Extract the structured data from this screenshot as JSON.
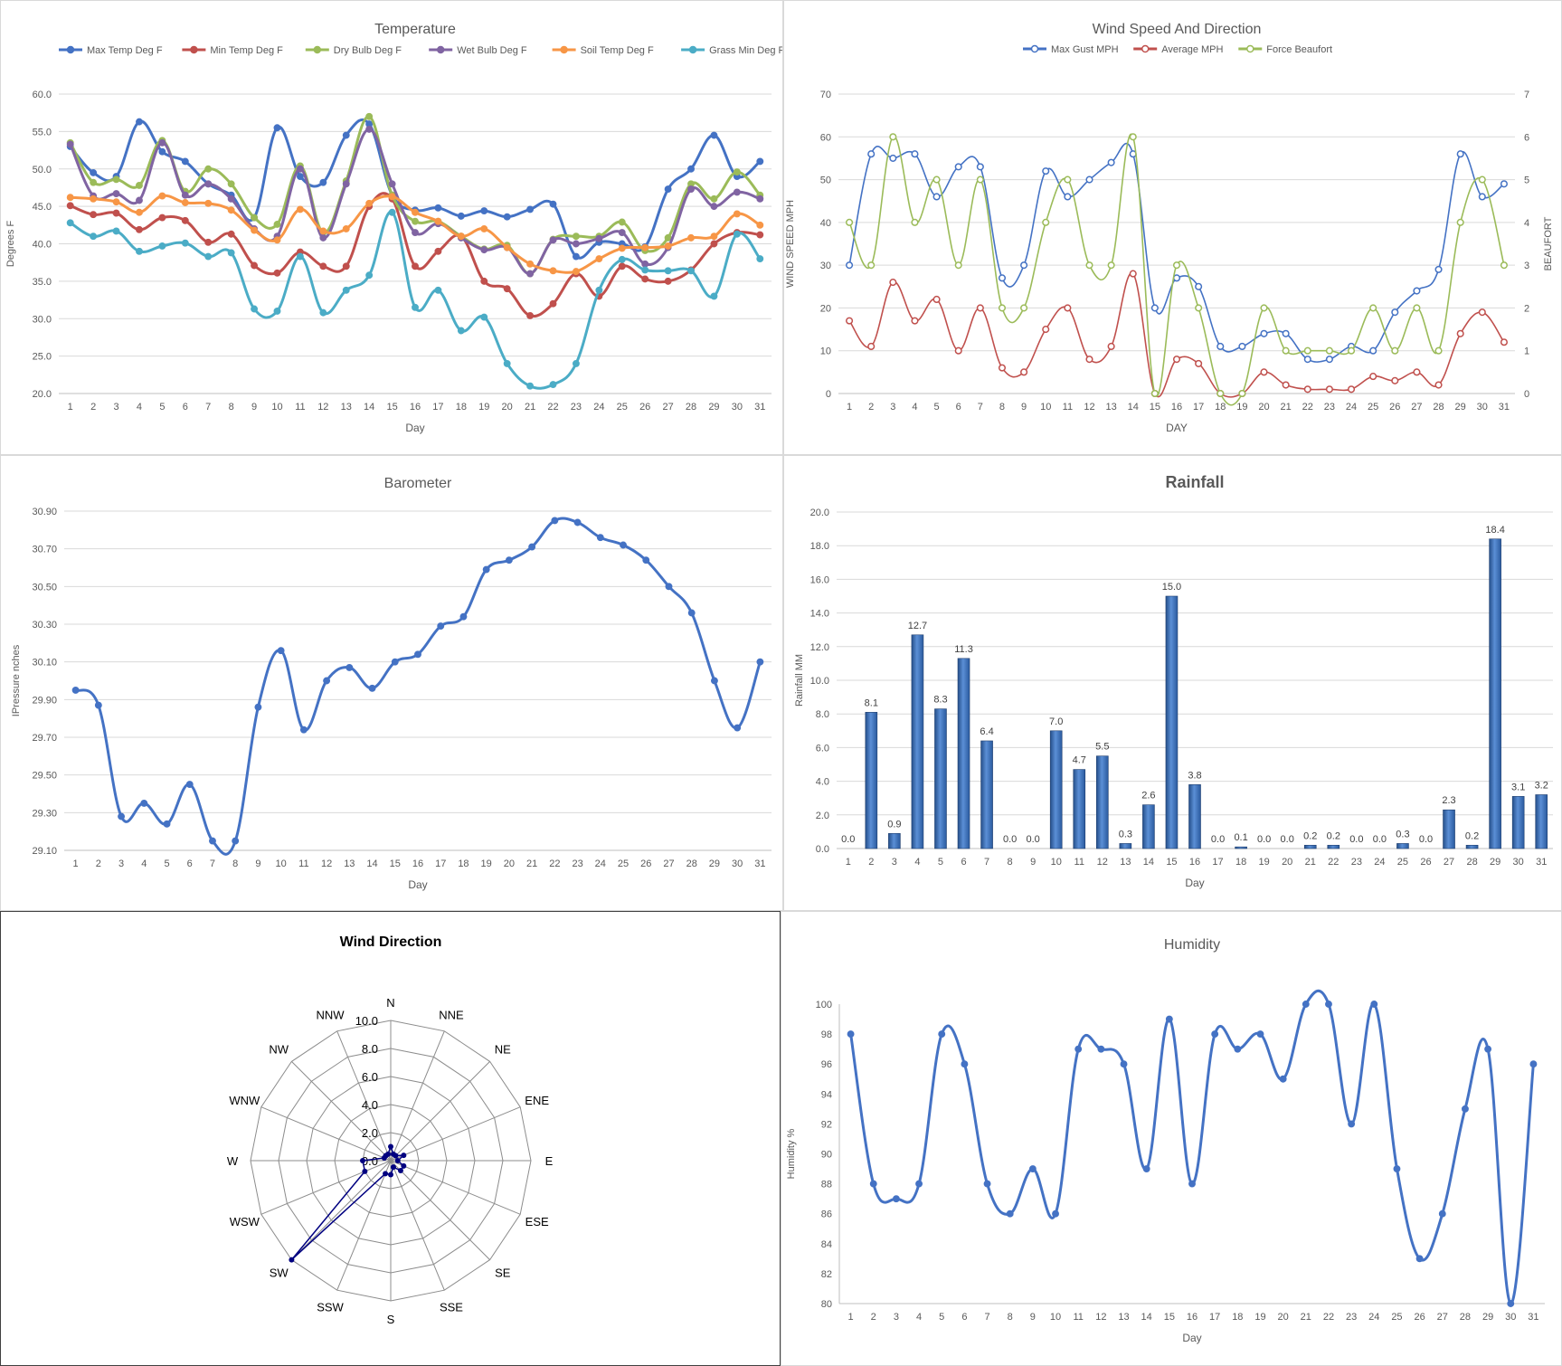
{
  "chart_data": [
    {
      "id": "temperature",
      "type": "line",
      "title": "Temperature",
      "xlabel": "Day",
      "ylabel": "Degrees F",
      "ylim": [
        20,
        60
      ],
      "yticks": [
        "20.0",
        "25.0",
        "30.0",
        "35.0",
        "40.0",
        "45.0",
        "50.0",
        "55.0",
        "60.0"
      ],
      "grid": true,
      "legend_position": "top",
      "categories": [
        "1",
        "2",
        "3",
        "4",
        "5",
        "6",
        "7",
        "8",
        "9",
        "10",
        "11",
        "12",
        "13",
        "14",
        "15",
        "16",
        "17",
        "18",
        "19",
        "20",
        "21",
        "22",
        "23",
        "24",
        "25",
        "26",
        "27",
        "28",
        "29",
        "30",
        "31"
      ],
      "series": [
        {
          "name": "Max Temp Deg F",
          "color": "#4472C4",
          "values": [
            53.0,
            49.5,
            49.0,
            56.3,
            52.3,
            51.0,
            48.0,
            46.5,
            43.5,
            55.5,
            49.0,
            48.2,
            54.5,
            56.0,
            46.5,
            44.5,
            44.8,
            43.7,
            44.4,
            43.6,
            44.6,
            45.3,
            38.3,
            40.2,
            40.0,
            39.6,
            47.3,
            50.0,
            54.5,
            49.0,
            51.0
          ]
        },
        {
          "name": "Min Temp Deg F",
          "color": "#C0504D",
          "values": [
            45.1,
            43.9,
            44.1,
            41.9,
            43.5,
            43.1,
            40.2,
            41.3,
            37.1,
            36.1,
            38.9,
            37.0,
            37.0,
            45.0,
            46.0,
            37.0,
            39.0,
            41.0,
            35.0,
            34.0,
            30.4,
            32.0,
            36.0,
            33.0,
            37.0,
            35.3,
            35.0,
            36.5,
            40.0,
            41.5,
            41.2
          ]
        },
        {
          "name": "Dry Bulb Deg F",
          "color": "#9BBB59",
          "values": [
            53.5,
            48.2,
            48.6,
            47.8,
            53.8,
            47.0,
            50.0,
            48.0,
            43.5,
            42.6,
            50.4,
            41.5,
            48.4,
            57.0,
            46.5,
            43.0,
            43.0,
            41.0,
            39.3,
            39.8,
            36.0,
            40.6,
            41.0,
            41.0,
            42.9,
            39.1,
            40.8,
            48.0,
            46.0,
            49.6,
            46.5
          ]
        },
        {
          "name": "Wet Bulb Deg F",
          "color": "#8064A2",
          "values": [
            53.3,
            46.4,
            46.7,
            45.8,
            53.5,
            46.5,
            48.0,
            46.0,
            42.0,
            41.0,
            50.0,
            40.8,
            48.0,
            55.3,
            48.0,
            41.5,
            42.7,
            40.8,
            39.2,
            39.5,
            36.0,
            40.5,
            40.0,
            40.7,
            41.5,
            37.3,
            39.5,
            47.3,
            45.0,
            46.9,
            46.0
          ]
        },
        {
          "name": "Soil Temp Deg F",
          "color": "#F79646",
          "values": [
            46.2,
            46.0,
            45.6,
            44.2,
            46.4,
            45.5,
            45.4,
            44.5,
            41.8,
            40.5,
            44.6,
            41.7,
            42.0,
            45.4,
            46.3,
            44.2,
            43.0,
            41.0,
            42.0,
            39.5,
            37.3,
            36.4,
            36.3,
            38.0,
            39.4,
            39.5,
            39.7,
            40.8,
            41.0,
            44.0,
            42.5
          ]
        },
        {
          "name": "Grass Min Deg F",
          "color": "#4BACC6",
          "values": [
            42.8,
            41.0,
            41.7,
            39.0,
            39.7,
            40.1,
            38.3,
            38.8,
            31.3,
            31.0,
            38.3,
            30.8,
            33.8,
            35.8,
            44.2,
            31.5,
            33.8,
            28.4,
            30.2,
            24.0,
            21.0,
            21.2,
            24.0,
            33.8,
            37.9,
            36.5,
            36.4,
            36.4,
            33.0,
            41.3,
            38.0
          ]
        }
      ]
    },
    {
      "id": "wind",
      "type": "line",
      "title": "Wind Speed And Direction",
      "xlabel": "DAY",
      "ylabel": "WIND SPEED MPH",
      "ylabel_right": "BEAUFORT",
      "ylim": [
        0,
        70
      ],
      "ylim_right": [
        0,
        7
      ],
      "yticks": [
        "0",
        "10",
        "20",
        "30",
        "40",
        "50",
        "60",
        "70"
      ],
      "yticks_right": [
        "0",
        "1",
        "2",
        "3",
        "4",
        "5",
        "6",
        "7"
      ],
      "grid": true,
      "legend_position": "top",
      "categories": [
        "1",
        "2",
        "3",
        "4",
        "5",
        "6",
        "7",
        "8",
        "9",
        "10",
        "11",
        "12",
        "13",
        "14",
        "15",
        "16",
        "17",
        "18",
        "19",
        "20",
        "21",
        "22",
        "23",
        "24",
        "25",
        "26",
        "27",
        "28",
        "29",
        "30",
        "31"
      ],
      "series": [
        {
          "name": "Max Gust MPH",
          "color": "#4472C4",
          "axis": "left",
          "values": [
            30,
            56,
            55,
            56,
            46,
            53,
            53,
            27,
            30,
            52,
            46,
            50,
            54,
            56,
            20,
            27,
            25,
            11,
            11,
            14,
            14,
            8,
            8,
            11,
            10,
            19,
            24,
            29,
            56,
            46,
            49
          ]
        },
        {
          "name": "Average MPH",
          "color": "#C0504D",
          "axis": "left",
          "values": [
            17,
            11,
            26,
            17,
            22,
            10,
            20,
            6,
            5,
            15,
            20,
            8,
            11,
            28,
            0,
            8,
            7,
            0,
            0,
            5,
            2,
            1,
            1,
            1,
            4,
            3,
            5,
            2,
            14,
            19,
            12
          ]
        },
        {
          "name": "Force Beaufort",
          "color": "#9BBB59",
          "axis": "right",
          "values": [
            4,
            3,
            6,
            4,
            5,
            3,
            5,
            2,
            2,
            4,
            5,
            3,
            3,
            6,
            0,
            3,
            2,
            0,
            0,
            2,
            1,
            1,
            1,
            1,
            2,
            1,
            2,
            1,
            4,
            5,
            3
          ]
        }
      ]
    },
    {
      "id": "barometer",
      "type": "line",
      "title": "Barometer",
      "xlabel": "Day",
      "ylabel": "IPressure nches",
      "ylim": [
        29.1,
        30.9
      ],
      "yticks": [
        "29.10",
        "29.30",
        "29.50",
        "29.70",
        "29.90",
        "30.10",
        "30.30",
        "30.50",
        "30.70",
        "30.90"
      ],
      "grid": true,
      "categories": [
        "1",
        "2",
        "3",
        "4",
        "5",
        "6",
        "7",
        "8",
        "9",
        "10",
        "11",
        "12",
        "13",
        "14",
        "15",
        "16",
        "17",
        "18",
        "19",
        "20",
        "21",
        "22",
        "23",
        "24",
        "25",
        "26",
        "27",
        "28",
        "29",
        "30",
        "31"
      ],
      "series": [
        {
          "name": "",
          "color": "#4472C4",
          "values": [
            29.95,
            29.87,
            29.28,
            29.35,
            29.24,
            29.45,
            29.15,
            29.15,
            29.86,
            30.16,
            29.74,
            30.0,
            30.07,
            29.96,
            30.1,
            30.14,
            30.29,
            30.34,
            30.59,
            30.64,
            30.71,
            30.85,
            30.84,
            30.76,
            30.72,
            30.64,
            30.5,
            30.36,
            30.0,
            29.75,
            30.1
          ]
        }
      ]
    },
    {
      "id": "rainfall",
      "type": "bar",
      "title": "Rainfall",
      "xlabel": "Day",
      "ylabel": "Rainfall MM",
      "ylim": [
        0,
        20
      ],
      "yticks": [
        "0.0",
        "2.0",
        "4.0",
        "6.0",
        "8.0",
        "10.0",
        "12.0",
        "14.0",
        "16.0",
        "18.0",
        "20.0"
      ],
      "grid": true,
      "categories": [
        "1",
        "2",
        "3",
        "4",
        "5",
        "6",
        "7",
        "8",
        "9",
        "10",
        "11",
        "12",
        "13",
        "14",
        "15",
        "16",
        "17",
        "18",
        "19",
        "20",
        "21",
        "22",
        "23",
        "24",
        "25",
        "26",
        "27",
        "28",
        "29",
        "30",
        "31"
      ],
      "values": [
        0.0,
        8.1,
        0.9,
        12.7,
        8.3,
        11.3,
        6.4,
        0.0,
        0.0,
        7.0,
        4.7,
        5.5,
        0.3,
        2.6,
        15.0,
        3.8,
        0.0,
        0.1,
        0.0,
        0.0,
        0.2,
        0.2,
        0.0,
        0.0,
        0.3,
        0.0,
        2.3,
        0.2,
        18.4,
        3.1,
        3.2
      ],
      "labels": [
        "0.0",
        "8.1",
        "0.9",
        "12.7",
        "8.3",
        "11.3",
        "6.4",
        "0.0",
        "0.0",
        "7.0",
        "4.7",
        "5.5",
        "0.3",
        "2.6",
        "15.0",
        "3.8",
        "0.0",
        "0.1",
        "0.0",
        "0.0",
        "0.2",
        "0.2",
        "0.0",
        "0.0",
        "0.3",
        "0.0",
        "2.3",
        "0.2",
        "18.4",
        "3.1",
        "3.2"
      ],
      "color": "#4F81BD"
    },
    {
      "id": "winddir",
      "type": "radar",
      "title": "Wind Direction",
      "rlim": [
        0,
        10
      ],
      "rticks": [
        "0.0",
        "2.0",
        "4.0",
        "6.0",
        "8.0",
        "10.0"
      ],
      "directions": [
        "N",
        "NNE",
        "NE",
        "ENE",
        "E",
        "ESE",
        "SE",
        "SSE",
        "S",
        "SSW",
        "SW",
        "WSW",
        "W",
        "WNW",
        "NW",
        "NNW"
      ],
      "values": [
        1.0,
        0.5,
        0.5,
        1.0,
        0.5,
        1.0,
        1.0,
        0.5,
        1.0,
        1.0,
        10.0,
        2.0,
        2.0,
        0.5,
        0.5,
        0.5
      ],
      "color": "#000080"
    },
    {
      "id": "humidity",
      "type": "line",
      "title": "Humidity",
      "xlabel": "Day",
      "ylabel": "Humidity %",
      "ylim": [
        80,
        100
      ],
      "yticks": [
        "80",
        "82",
        "84",
        "86",
        "88",
        "90",
        "92",
        "94",
        "96",
        "98",
        "100"
      ],
      "grid": false,
      "categories": [
        "1",
        "2",
        "3",
        "4",
        "5",
        "6",
        "7",
        "8",
        "9",
        "10",
        "11",
        "12",
        "13",
        "14",
        "15",
        "16",
        "17",
        "18",
        "19",
        "20",
        "21",
        "22",
        "23",
        "24",
        "25",
        "26",
        "27",
        "28",
        "29",
        "30",
        "31"
      ],
      "series": [
        {
          "name": "",
          "color": "#4472C4",
          "values": [
            98,
            88,
            87,
            88,
            98,
            96,
            88,
            86,
            89,
            86,
            97,
            97,
            96,
            89,
            99,
            88,
            98,
            97,
            98,
            95,
            100,
            100,
            92,
            100,
            89,
            83,
            86,
            93,
            97,
            80,
            96
          ]
        }
      ]
    }
  ]
}
